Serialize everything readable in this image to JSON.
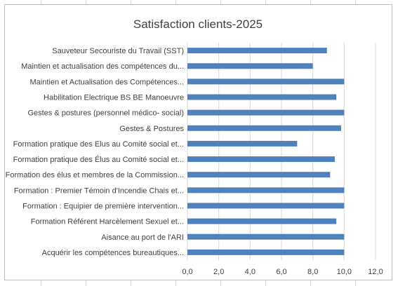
{
  "chart_data": {
    "type": "bar",
    "orientation": "horizontal",
    "title": "Satisfaction clients-2025",
    "categories": [
      "Sauveteur Secouriste du Travail (SST)",
      "Maintien et actualisation des compétences du...",
      "Maintien et Actualisation des Compétences...",
      "Habilitation Electrique BS BE Manoeuvre",
      "Gestes & postures (personnel médico- social)",
      "Gestes & Postures",
      "Formation pratique des Elus au Comité social et...",
      "Formation pratique des Élus au Comité social et...",
      "Formation des élus et membres de la Commission...",
      "Formation : Premier Témoin d'Incendie Chais et...",
      "Formation :  Equipier de première intervention...",
      "Formation  Référent Harcèlement Sexuel et...",
      "Aisance au port de l'ARI",
      "Acquérir les compétences bureautiques..."
    ],
    "values": [
      8.9,
      8.0,
      10.0,
      9.5,
      10.0,
      9.8,
      7.0,
      9.4,
      9.1,
      10.0,
      10.0,
      9.5,
      10.0,
      10.0
    ],
    "xlim": [
      0,
      12
    ],
    "x_ticks": [
      "0,0",
      "2,0",
      "4,0",
      "6,0",
      "8,0",
      "10,0",
      "12,0"
    ],
    "grid": true,
    "bar_color": "#4f81bd",
    "grid_color": "#d9d9d9",
    "title_color": "#404040",
    "label_color": "#404040"
  }
}
